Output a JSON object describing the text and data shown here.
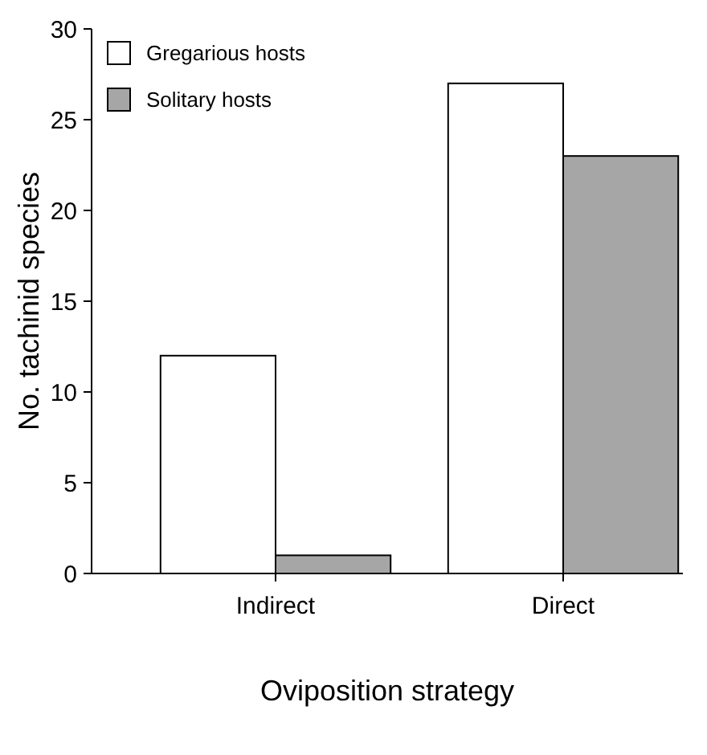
{
  "chart_data": {
    "type": "bar",
    "xlabel": "Oviposition strategy",
    "ylabel": "No. tachinid species",
    "categories": [
      "Indirect",
      "Direct"
    ],
    "series": [
      {
        "name": "Gregarious hosts",
        "color": "#ffffff",
        "values": [
          12,
          27
        ]
      },
      {
        "name": "Solitary hosts",
        "color": "#a6a6a6",
        "values": [
          1,
          23
        ]
      }
    ],
    "ylim": [
      0,
      30
    ],
    "yticks": [
      0,
      5,
      10,
      15,
      20,
      25,
      30
    ],
    "legend": "top left",
    "grid": false
  }
}
